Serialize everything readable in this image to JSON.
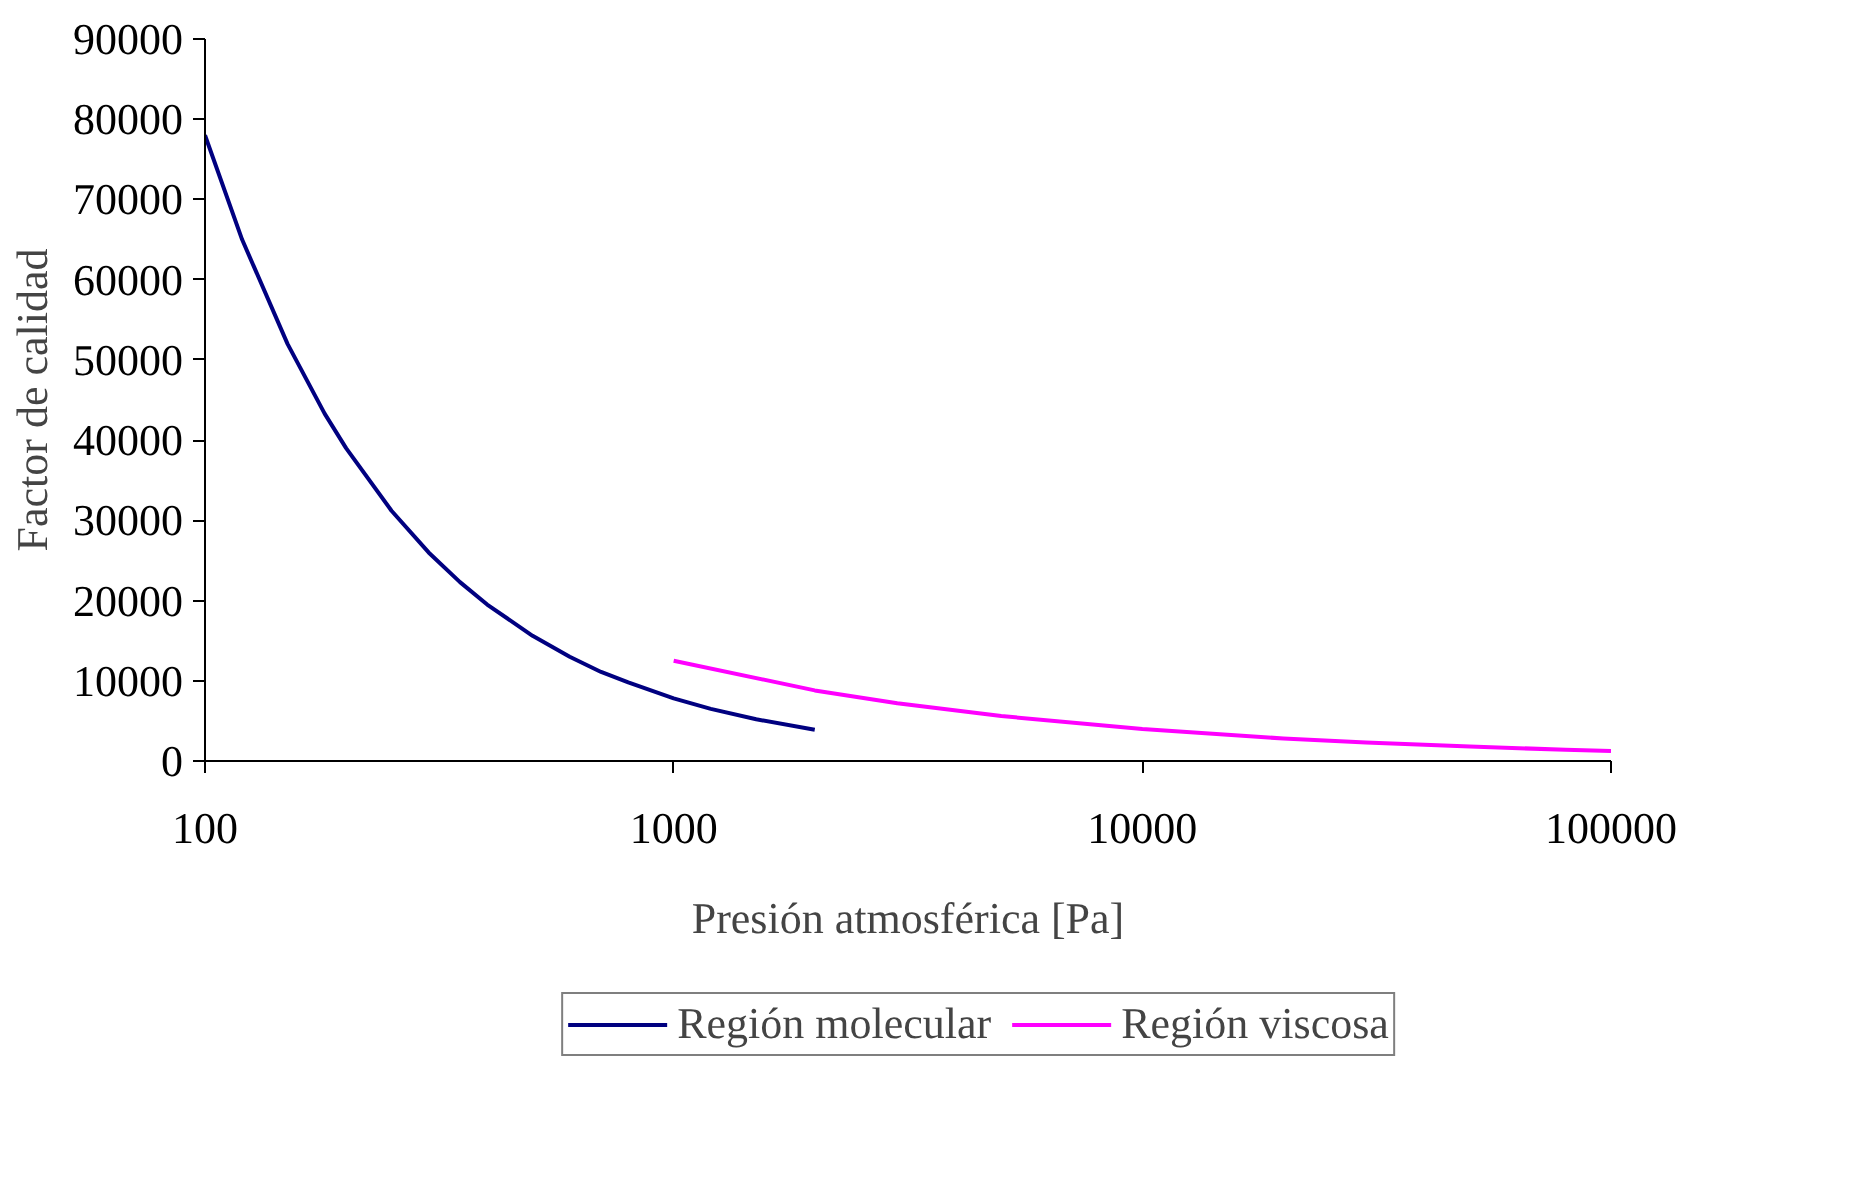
{
  "chart_data": {
    "type": "line",
    "xlabel": "Presión atmosférica [Pa]",
    "ylabel": "Factor de calidad",
    "log": "x",
    "xlim": [
      100,
      100000
    ],
    "xticks": [
      100,
      1000,
      10000,
      100000
    ],
    "ylim": [
      0,
      90000
    ],
    "yticks": [
      0,
      10000,
      20000,
      30000,
      40000,
      50000,
      60000,
      70000,
      80000,
      90000
    ],
    "grid": false,
    "legend": "bottom",
    "marker": "none",
    "line_style": "solid",
    "series": [
      {
        "name": "Región molecular",
        "color": "#000080",
        "x": [
          100,
          120,
          150,
          180,
          200,
          250,
          300,
          350,
          400,
          500,
          600,
          700,
          800,
          1000,
          1200,
          1500,
          2000
        ],
        "values": [
          78000,
          65000,
          52000,
          43300,
          39000,
          31200,
          26000,
          22300,
          19500,
          15600,
          13000,
          11100,
          9800,
          7800,
          6500,
          5200,
          3900
        ]
      },
      {
        "name": "Región viscosa",
        "color": "#ff00ff",
        "x": [
          1000,
          2000,
          3000,
          5000,
          10000,
          20000,
          30000,
          50000,
          80000,
          100000
        ],
        "values": [
          12500,
          8800,
          7200,
          5600,
          4000,
          2800,
          2300,
          1800,
          1400,
          1250
        ]
      }
    ]
  }
}
